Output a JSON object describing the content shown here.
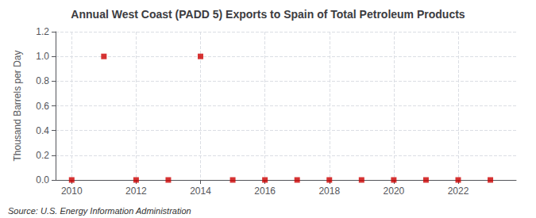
{
  "chart_data": {
    "type": "scatter",
    "title": "Annual West Coast (PADD 5) Exports to Spain of Total Petroleum Products",
    "ylabel": "Thousand Barrels per Day",
    "annotation": "Source: U.S. Energy Information Administration",
    "x": [
      2010,
      2011,
      2012,
      2013,
      2014,
      2015,
      2016,
      2017,
      2018,
      2019,
      2020,
      2021,
      2022,
      2023
    ],
    "values": [
      0,
      1.0,
      0,
      0,
      1.0,
      0,
      0,
      0,
      0,
      0,
      0,
      0,
      0,
      0
    ],
    "color": "#cc0000",
    "marker": "square",
    "xlim": [
      2009.5,
      2023.8
    ],
    "xticks": [
      2010,
      2012,
      2014,
      2016,
      2018,
      2020,
      2022
    ],
    "ylim": [
      0,
      1.2
    ],
    "yticks": [
      {
        "value": 0.0,
        "label": "0.0"
      },
      0.2,
      0.4,
      0.6,
      0.8,
      {
        "value": 1.0,
        "label": "1.0"
      },
      1.2
    ],
    "grid": true
  }
}
